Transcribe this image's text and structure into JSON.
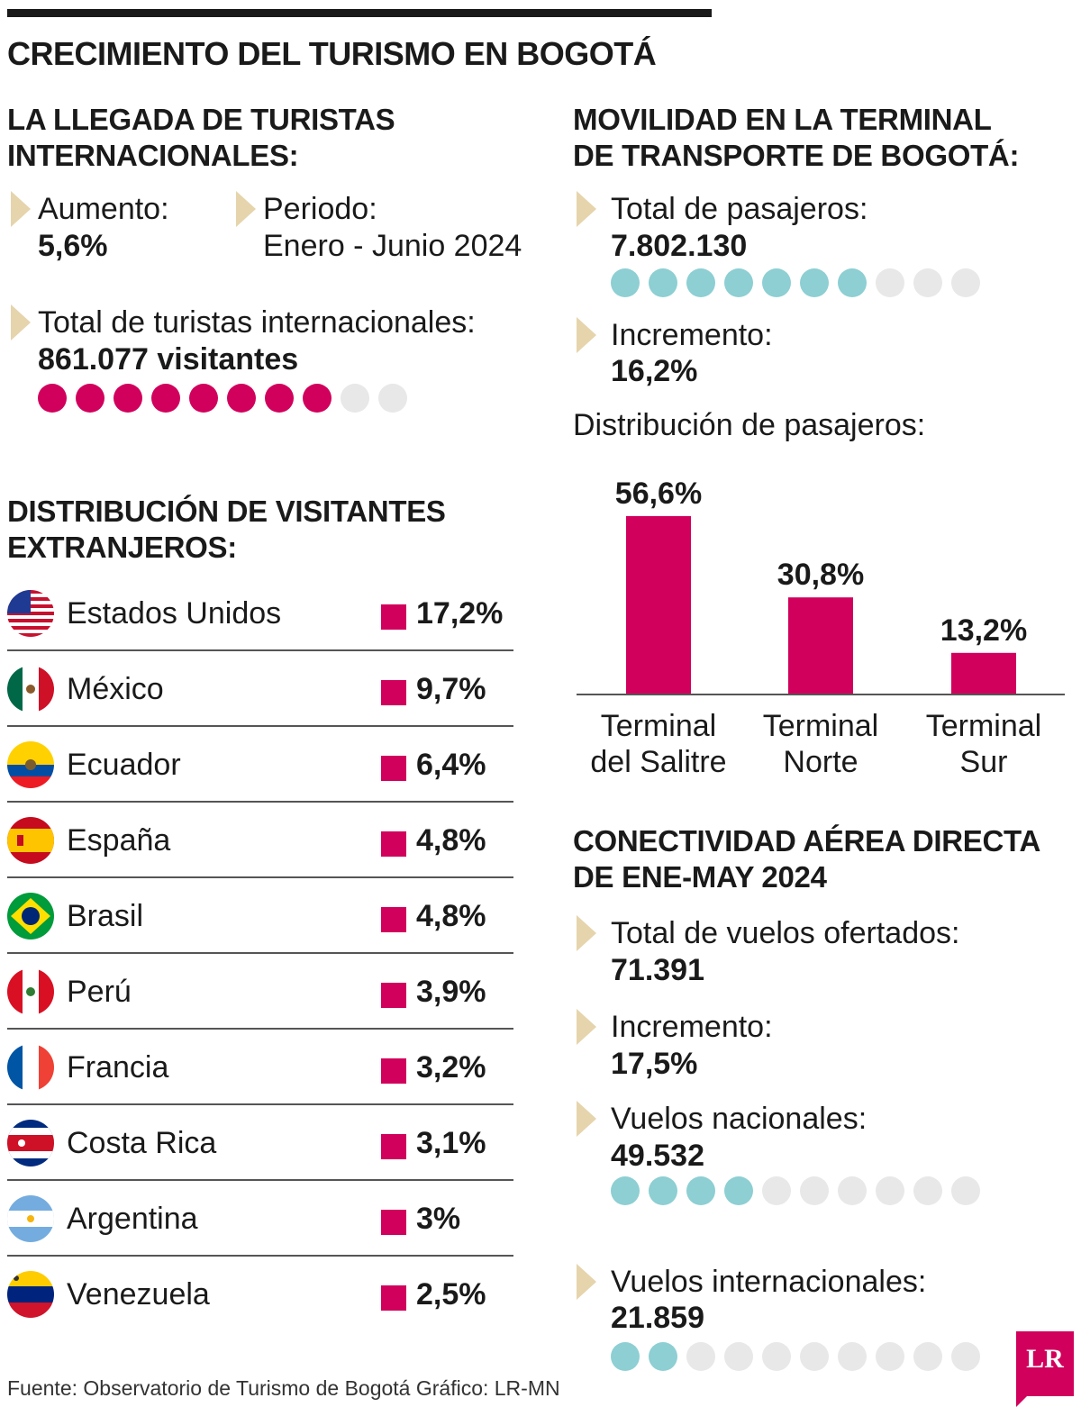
{
  "title": "CRECIMIENTO DEL TURISMO EN BOGOTÁ",
  "intl": {
    "heading_l1": "LA LLEGADA DE TURISTAS",
    "heading_l2": "INTERNACIONALES:",
    "aumento_label": "Aumento:",
    "aumento_value": "5,6%",
    "periodo_label": "Periodo:",
    "periodo_value": "Enero - Junio 2024",
    "total_label": "Total de turistas internacionales:",
    "total_value": "861.077 visitantes",
    "dots_on": 8,
    "dots_total": 10,
    "dots_color": "#d1005c"
  },
  "distribution": {
    "heading_l1": "DISTRIBUCIÓN DE VISITANTES",
    "heading_l2": "EXTRANJEROS:",
    "countries": [
      {
        "name": "Estados Unidos",
        "pct": "17,2%",
        "flag": "usa-flag-icon"
      },
      {
        "name": "México",
        "pct": "9,7%",
        "flag": "mexico-flag-icon"
      },
      {
        "name": "Ecuador",
        "pct": "6,4%",
        "flag": "ecuador-flag-icon"
      },
      {
        "name": "España",
        "pct": "4,8%",
        "flag": "spain-flag-icon"
      },
      {
        "name": "Brasil",
        "pct": "4,8%",
        "flag": "brazil-flag-icon"
      },
      {
        "name": "Perú",
        "pct": "3,9%",
        "flag": "peru-flag-icon"
      },
      {
        "name": "Francia",
        "pct": "3,2%",
        "flag": "france-flag-icon"
      },
      {
        "name": "Costa Rica",
        "pct": "3,1%",
        "flag": "costa-rica-flag-icon"
      },
      {
        "name": "Argentina",
        "pct": "3%",
        "flag": "argentina-flag-icon"
      },
      {
        "name": "Venezuela",
        "pct": "2,5%",
        "flag": "venezuela-flag-icon"
      }
    ]
  },
  "terminal": {
    "heading_l1": "MOVILIDAD EN LA TERMINAL",
    "heading_l2": "DE TRANSPORTE DE BOGOTÁ:",
    "total_label": "Total de pasajeros:",
    "total_value": "7.802.130",
    "dots_on": 7,
    "dots_total": 10,
    "dots_color": "#8dcfd3",
    "incremento_label": "Incremento:",
    "incremento_value": "16,2%",
    "dist_label": "Distribución de pasajeros:"
  },
  "air": {
    "heading_l1": "CONECTIVIDAD AÉREA DIRECTA",
    "heading_l2": "DE ENE-MAY 2024",
    "total_label": "Total de vuelos ofertados:",
    "total_value": "71.391",
    "incremento_label": "Incremento:",
    "incremento_value": "17,5%",
    "nacionales_label": "Vuelos nacionales:",
    "nacionales_value": "49.532",
    "nacionales_dots_on": 4,
    "internacionales_label": "Vuelos internacionales:",
    "internacionales_value": "21.859",
    "internacionales_dots_on": 2,
    "dots_total": 10
  },
  "chart_data": {
    "type": "bar",
    "categories": [
      [
        "Terminal",
        "del Salitre"
      ],
      [
        "Terminal",
        "Norte"
      ],
      [
        "Terminal",
        "Sur"
      ]
    ],
    "values": [
      56.6,
      30.8,
      13.2
    ],
    "value_labels": [
      "56,6%",
      "30,8%",
      "13,2%"
    ],
    "ylim": [
      0,
      60
    ],
    "bar_color": "#d1005c",
    "grid": false
  },
  "footer": "Fuente: Observatorio de Turismo de Bogotá  Gráfico: LR-MN",
  "logo": "LR"
}
